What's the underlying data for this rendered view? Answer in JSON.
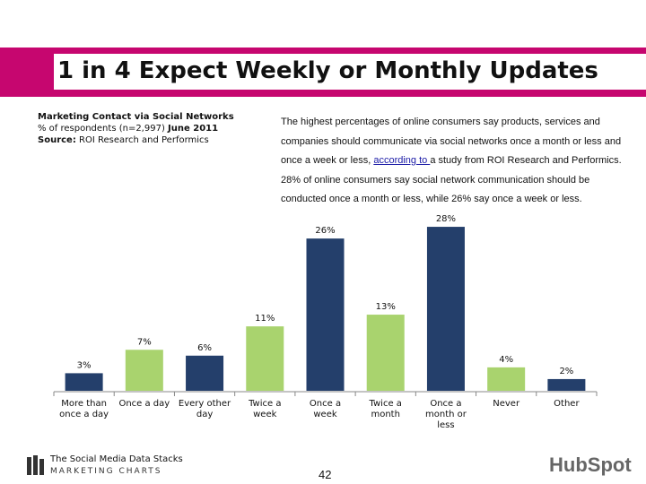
{
  "chart_data": {
    "type": "bar",
    "title": "1 in 4 Expect Weekly or Monthly Updates",
    "subtitle": {
      "line1": "Marketing Contact via Social Networks",
      "line2_a": "% of respondents (n=2,997) ",
      "line2_b": "June 2011",
      "line3_a": "Source:",
      "line3_b": " ROI Research and Performics"
    },
    "description": {
      "before": "The highest percentages of online consumers say products, services and companies should communicate via social networks once a month or less and once a week or less, ",
      "link": "according to ",
      "after": "a study from ROI Research and Performics. 28% of online consumers say social network communication should be conducted once a month or less, while 26% say once a week or less."
    },
    "categories": [
      "More than once a day",
      "Once a day",
      "Every other day",
      "Twice a week",
      "Once a week",
      "Twice a month",
      "Once a month or less",
      "Never",
      "Other"
    ],
    "values": [
      3,
      7,
      6,
      11,
      26,
      13,
      28,
      4,
      2
    ],
    "value_labels": [
      "3%",
      "7%",
      "6%",
      "11%",
      "26%",
      "13%",
      "28%",
      "4%",
      "2%"
    ],
    "colors": [
      "#243f6b",
      "#a9d36e",
      "#243f6b",
      "#a9d36e",
      "#243f6b",
      "#a9d36e",
      "#243f6b",
      "#a9d36e",
      "#243f6b"
    ],
    "ylim": [
      0,
      30
    ]
  },
  "footer": {
    "brand_line1": "The Social Media Data Stacks",
    "brand_line2": "MARKETING CHARTS",
    "page_number": "42",
    "logo": "HubSpot"
  }
}
